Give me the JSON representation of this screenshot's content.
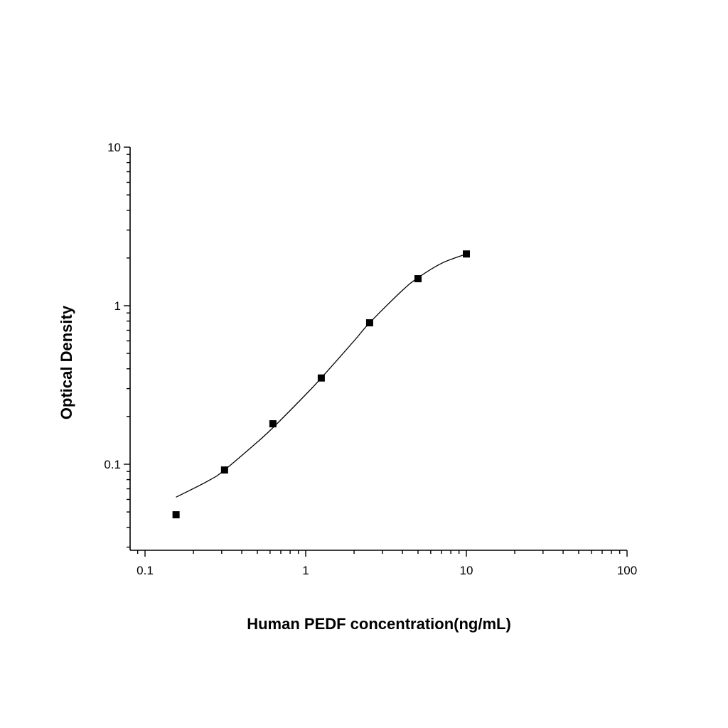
{
  "chart_data": {
    "type": "scatter",
    "title": "",
    "xlabel": "Human PEDF concentration(ng/mL)",
    "ylabel": "Optical Density",
    "xscale": "log",
    "yscale": "log",
    "xlim": [
      0.09,
      100
    ],
    "ylim": [
      0.027,
      10
    ],
    "x_ticks": [
      {
        "value": 0.1,
        "label": "0.1"
      },
      {
        "value": 1,
        "label": "1"
      },
      {
        "value": 10,
        "label": "10"
      },
      {
        "value": 100,
        "label": "100"
      }
    ],
    "y_ticks": [
      {
        "value": 0.1,
        "label": "0.1"
      },
      {
        "value": 1,
        "label": "1"
      },
      {
        "value": 10,
        "label": "10"
      }
    ],
    "grid": false,
    "legend": "none",
    "series": [
      {
        "marker": "square",
        "color": "#000000",
        "points": [
          {
            "x": 0.156,
            "y": 0.048
          },
          {
            "x": 0.3125,
            "y": 0.092
          },
          {
            "x": 0.625,
            "y": 0.18
          },
          {
            "x": 1.25,
            "y": 0.35
          },
          {
            "x": 2.5,
            "y": 0.78
          },
          {
            "x": 5,
            "y": 1.48
          },
          {
            "x": 10,
            "y": 2.12
          }
        ]
      }
    ],
    "fit_curve": {
      "color": "#000000",
      "points": [
        {
          "x": 0.156,
          "y": 0.062
        },
        {
          "x": 0.25,
          "y": 0.079
        },
        {
          "x": 0.3125,
          "y": 0.092
        },
        {
          "x": 0.5,
          "y": 0.138
        },
        {
          "x": 0.625,
          "y": 0.17
        },
        {
          "x": 1,
          "y": 0.275
        },
        {
          "x": 1.25,
          "y": 0.35
        },
        {
          "x": 2,
          "y": 0.6
        },
        {
          "x": 2.5,
          "y": 0.78
        },
        {
          "x": 4,
          "y": 1.25
        },
        {
          "x": 5,
          "y": 1.5
        },
        {
          "x": 7,
          "y": 1.85
        },
        {
          "x": 10,
          "y": 2.12
        }
      ]
    }
  }
}
